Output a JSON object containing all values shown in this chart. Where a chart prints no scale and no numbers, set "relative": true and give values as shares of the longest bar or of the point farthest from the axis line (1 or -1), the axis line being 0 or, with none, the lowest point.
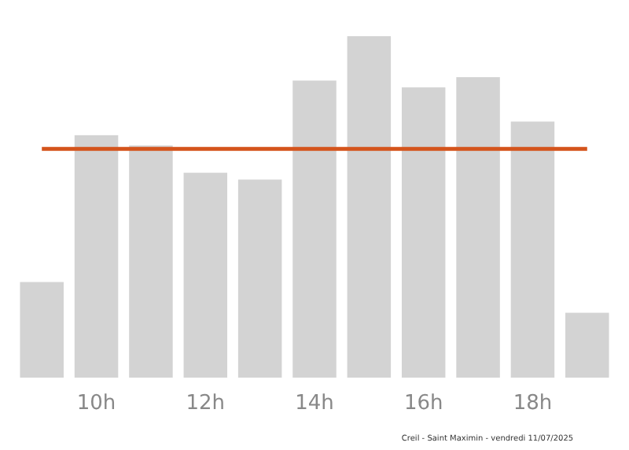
{
  "chart_data": {
    "type": "bar",
    "relative": true,
    "categories": [
      null,
      "10h",
      null,
      "12h",
      null,
      "14h",
      null,
      "16h",
      null,
      "18h",
      null
    ],
    "values": [
      0.28,
      0.71,
      0.68,
      0.6,
      0.58,
      0.87,
      1,
      0.85,
      0.88,
      0.75,
      0.19
    ],
    "color": "#d3d3d3",
    "ref_lines": [
      {
        "axis": "y",
        "value": 0.67,
        "color": "#d4541c"
      }
    ],
    "annotations": [
      "Creil - Saint Maximin - vendredi 11/07/2025"
    ]
  }
}
